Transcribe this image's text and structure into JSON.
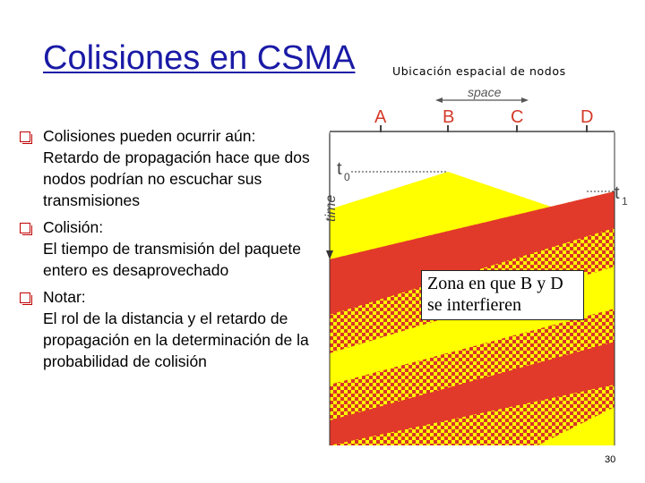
{
  "slide": {
    "title": "Colisiones en CSMA",
    "page_number": "30"
  },
  "bullets": [
    {
      "head": "Colisiones pueden ocurrir aún:",
      "body": "Retardo de propagación hace que dos nodos podrían no escuchar sus transmisiones"
    },
    {
      "head": "Colisión:",
      "body": "El tiempo de transmisión del paquete entero es desaprovechado"
    },
    {
      "head": "Notar:",
      "body": "El rol de la distancia y el retardo de propagación en la determinación de la probabilidad de colisión"
    }
  ],
  "diagram": {
    "header": "Ubicación espacial de nodos",
    "space_label": "space",
    "time_label": "time",
    "nodes": [
      "A",
      "B",
      "C",
      "D"
    ],
    "t0_label": "t",
    "t0_sub": "0",
    "t1_label": "t",
    "t1_sub": "1",
    "zone_label": "Zona en que B y D se interfieren",
    "colors": {
      "node_label": "#d43a2a",
      "yellow": "#ffff00",
      "red": "#e23a2a",
      "checker_red": "#d8352a",
      "axis": "#444444"
    }
  }
}
